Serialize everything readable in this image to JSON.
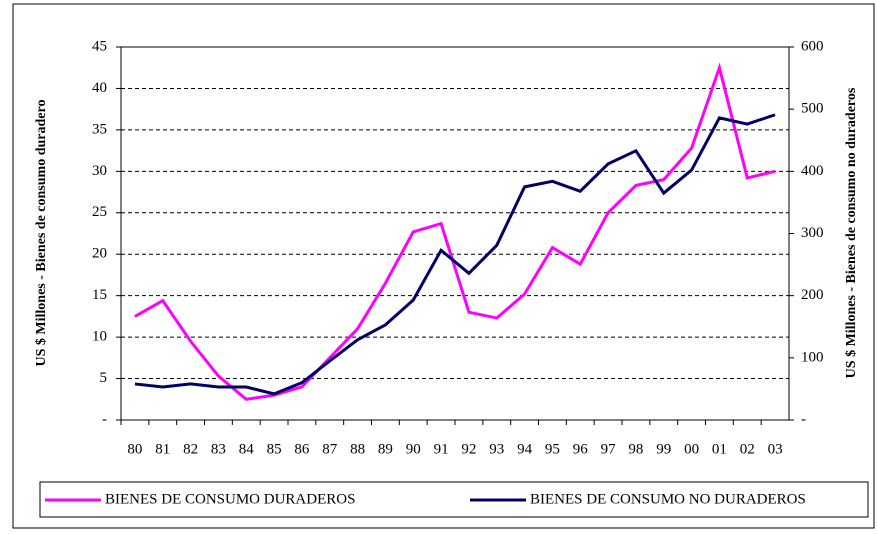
{
  "chart_data": {
    "type": "line",
    "y_label": "US $ Millones - Bienes de consumo duradero",
    "y2_label": "US $ Millones - Bienes de consumo no duraderos",
    "categories": [
      "80",
      "81",
      "82",
      "83",
      "84",
      "85",
      "86",
      "87",
      "88",
      "89",
      "90",
      "91",
      "92",
      "93",
      "94",
      "95",
      "96",
      "97",
      "98",
      "99",
      "00",
      "01",
      "02",
      "03"
    ],
    "series": [
      {
        "name": "BIENES DE CONSUMO DURADEROS",
        "color": "#ff00ff",
        "values": [
          12.5,
          14.4,
          9.5,
          5.3,
          2.5,
          3.0,
          4.0,
          7.5,
          11,
          16.5,
          22.7,
          23.7,
          13.0,
          12.3,
          15.2,
          20.8,
          18.8,
          25,
          28.3,
          29,
          32.8,
          42.5,
          29.2,
          30
        ]
      },
      {
        "name": "BIENES DE CONSUMO NO DURADEROS",
        "color": "#000066",
        "axis": "y2",
        "values": [
          58,
          53,
          58,
          53,
          53,
          42,
          60,
          95,
          129,
          153,
          193,
          273,
          236,
          281,
          375,
          384,
          368,
          412,
          433,
          365,
          402,
          486,
          476,
          491
        ]
      }
    ],
    "ylim": [
      0,
      45
    ],
    "yticks": [
      {
        "value": 0,
        "label": "-"
      },
      5,
      10,
      15,
      20,
      25,
      30,
      35,
      40,
      45
    ],
    "y2lim": [
      0,
      600
    ],
    "y2ticks": [
      {
        "value": 0,
        "label": "-"
      },
      100,
      200,
      300,
      400,
      500,
      600
    ],
    "grid": true,
    "legend": "bottom"
  }
}
